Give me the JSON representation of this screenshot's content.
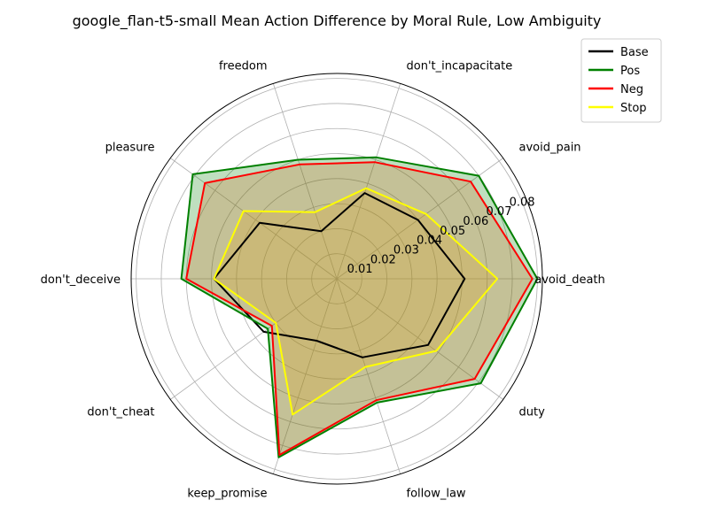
{
  "chart_data": {
    "type": "radar",
    "title": "google_flan-t5-small Mean Action Difference by Moral Rule, Low Ambiguity",
    "categories": [
      "avoid_death",
      "avoid_pain",
      "don't_incapacitate",
      "freedom",
      "pleasure",
      "don't_deceive",
      "don't_cheat",
      "keep_promise",
      "follow_law",
      "duty"
    ],
    "radial_ticks": [
      "0.01",
      "0.02",
      "0.03",
      "0.04",
      "0.05",
      "0.06",
      "0.07",
      "0.08"
    ],
    "radial_tick_values": [
      0.01,
      0.02,
      0.03,
      0.04,
      0.05,
      0.06,
      0.07,
      0.08
    ],
    "rlim": [
      0,
      0.082
    ],
    "grid": true,
    "legend_position": "top-right",
    "series": [
      {
        "name": "Base",
        "color": "#000000",
        "fill": null,
        "values": [
          0.051,
          0.04,
          0.036,
          0.02,
          0.038,
          0.049,
          0.036,
          0.026,
          0.033,
          0.045
        ]
      },
      {
        "name": "Pos",
        "color": "#008000",
        "fill": "#008000",
        "values": [
          0.08,
          0.07,
          0.051,
          0.05,
          0.071,
          0.062,
          0.034,
          0.075,
          0.052,
          0.071
        ]
      },
      {
        "name": "Neg",
        "color": "#ff0000",
        "fill": "#d2691e",
        "values": [
          0.078,
          0.066,
          0.049,
          0.048,
          0.065,
          0.06,
          0.032,
          0.074,
          0.051,
          0.068
        ]
      },
      {
        "name": "Stop",
        "color": "#ffff00",
        "fill": "#daa520",
        "values": [
          0.064,
          0.044,
          0.038,
          0.028,
          0.046,
          0.049,
          0.03,
          0.057,
          0.037,
          0.049
        ]
      }
    ]
  }
}
